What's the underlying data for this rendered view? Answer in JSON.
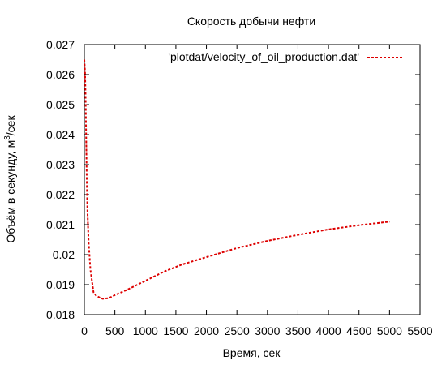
{
  "chart_data": {
    "type": "line",
    "title": "Скорость добычи нефти",
    "xlabel": "Время, сек",
    "ylabel": {
      "prefix": "Объём в секунду, м",
      "superscript": "3",
      "suffix": "/сек"
    },
    "xlim": [
      0,
      5500
    ],
    "ylim": [
      0.018,
      0.027
    ],
    "x_ticks": [
      0,
      500,
      1000,
      1500,
      2000,
      2500,
      3000,
      3500,
      4000,
      4500,
      5000,
      5500
    ],
    "x_tick_labels": [
      "0",
      "500",
      "1000",
      "1500",
      "2000",
      "2500",
      "3000",
      "3500",
      "4000",
      "4500",
      "5000",
      "5500"
    ],
    "y_ticks": [
      0.018,
      0.019,
      0.02,
      0.021,
      0.022,
      0.023,
      0.024,
      0.025,
      0.026,
      0.027
    ],
    "y_tick_labels": [
      "0.018",
      "0.019",
      "0.02",
      "0.021",
      "0.022",
      "0.023",
      "0.024",
      "0.025",
      "0.026",
      "0.027"
    ],
    "grid": false,
    "legend_position": "top-right",
    "series": [
      {
        "name": "'plotdat/velocity_of_oil_production.dat'",
        "color": "#dd0000",
        "line_style": "dashed",
        "x": [
          0,
          10,
          20,
          30,
          40,
          50,
          70,
          100,
          150,
          200,
          300,
          400,
          500,
          700,
          1000,
          1300,
          1600,
          2000,
          2500,
          3000,
          3500,
          4000,
          4500,
          5000
        ],
        "y": [
          0.0265,
          0.0261,
          0.0253,
          0.0238,
          0.0225,
          0.0215,
          0.0204,
          0.0195,
          0.01875,
          0.01862,
          0.01853,
          0.01855,
          0.01865,
          0.01883,
          0.01913,
          0.01943,
          0.01967,
          0.01992,
          0.02022,
          0.02046,
          0.02066,
          0.02084,
          0.02098,
          0.0211
        ]
      }
    ]
  }
}
